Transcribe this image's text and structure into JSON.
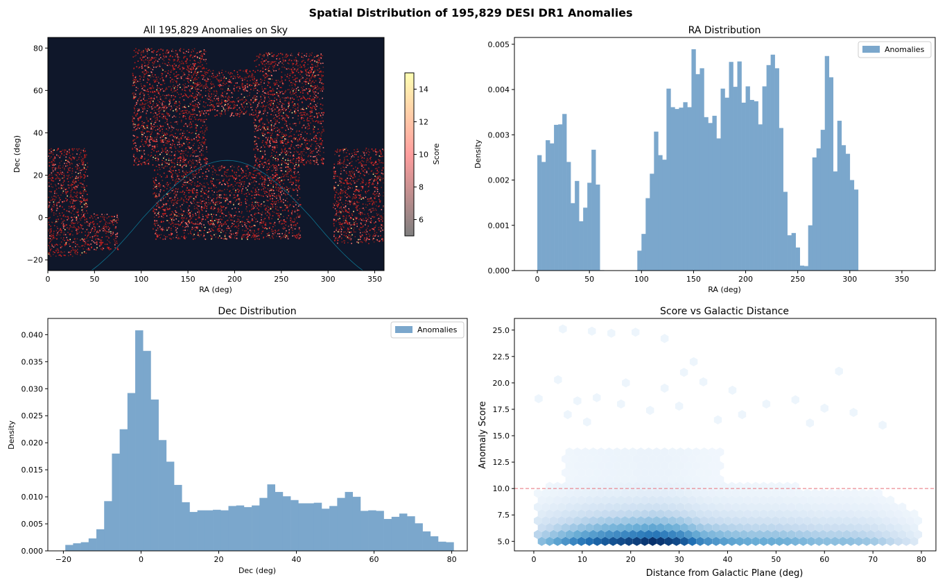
{
  "suptitle": "Spatial Distribution of 195,829 DESI DR1 Anomalies",
  "chart_data": [
    {
      "type": "scatter",
      "title": "All 195,829 Anomalies on Sky",
      "xlabel": "RA (deg)",
      "ylabel": "Dec (deg)",
      "xlim": [
        0,
        360
      ],
      "ylim": [
        -25,
        85
      ],
      "xticks": [
        "0",
        "50",
        "100",
        "150",
        "200",
        "250",
        "300",
        "350"
      ],
      "yticks": [
        "−20",
        "0",
        "20",
        "40",
        "60",
        "80"
      ],
      "background": "#0f172a",
      "point_color": "#b91c1c",
      "galactic_plane_color": "#0e7490",
      "colorbar": {
        "label": "Score",
        "range": [
          5,
          15
        ],
        "ticks": [
          "6",
          "8",
          "10",
          "12",
          "14"
        ],
        "colors": [
          "#7f7f7f",
          "#ff9e9e",
          "#ffffb3"
        ]
      },
      "footprint_regions": [
        {
          "ra_min": 0,
          "ra_max": 42,
          "dec_min": -18,
          "dec_max": 33
        },
        {
          "ra_min": 42,
          "ra_max": 75,
          "dec_min": -15,
          "dec_max": 2
        },
        {
          "ra_min": 305,
          "ra_max": 360,
          "dec_min": -12,
          "dec_max": 33
        },
        {
          "ra_min": 112,
          "ra_max": 270,
          "dec_min": -10,
          "dec_max": 25
        },
        {
          "ra_min": 90,
          "ra_max": 170,
          "dec_min": 25,
          "dec_max": 80
        },
        {
          "ra_min": 170,
          "ra_max": 220,
          "dec_min": 48,
          "dec_max": 70
        },
        {
          "ra_min": 220,
          "ra_max": 295,
          "dec_min": 25,
          "dec_max": 78
        }
      ]
    },
    {
      "type": "bar",
      "title": "RA Distribution",
      "xlabel": "RA (deg)",
      "ylabel": "Density",
      "xlim": [
        -22,
        382
      ],
      "ylim": [
        0,
        0.00515
      ],
      "xticks": [
        "0",
        "50",
        "100",
        "150",
        "200",
        "250",
        "300",
        "350"
      ],
      "yticks": [
        "0.000",
        "0.001",
        "0.002",
        "0.003",
        "0.004",
        "0.005"
      ],
      "bin_start": 0,
      "bin_width": 4,
      "legend": [
        "Anomalies"
      ],
      "legend_position": "top-right",
      "color": "#7ba7cc",
      "values": [
        0.00255,
        0.0024,
        0.00288,
        0.00281,
        0.00322,
        0.00323,
        0.00346,
        0.0024,
        0.00149,
        0.00198,
        0.00109,
        0.00139,
        0.00194,
        0.00267,
        0.0019,
        1e-05,
        0,
        0,
        0,
        0,
        0,
        0,
        0,
        0,
        0.00044,
        0.00081,
        0.0016,
        0.00214,
        0.00307,
        0.00255,
        0.00245,
        0.00402,
        0.00361,
        0.00357,
        0.0036,
        0.00372,
        0.00361,
        0.00489,
        0.00434,
        0.00447,
        0.00339,
        0.00326,
        0.00342,
        0.00292,
        0.00402,
        0.00382,
        0.00461,
        0.00406,
        0.00462,
        0.00371,
        0.00407,
        0.00377,
        0.00374,
        0.00323,
        0.00407,
        0.00454,
        0.00477,
        0.00447,
        0.00315,
        0.00174,
        0.00078,
        0.00083,
        0.00051,
        0.00011,
        0.0001,
        0.001,
        0.0025,
        0.0027,
        0.00311,
        0.00474,
        0.00427,
        0.00219,
        0.00331,
        0.00277,
        0.00258,
        0.002,
        0.00179
      ]
    },
    {
      "type": "bar",
      "title": "Dec Distribution",
      "xlabel": "Dec (deg)",
      "ylabel": "Density",
      "xlim": [
        -24,
        84
      ],
      "ylim": [
        0,
        0.043
      ],
      "xticks": [
        "−20",
        "0",
        "20",
        "40",
        "60",
        "80"
      ],
      "yticks": [
        "0.000",
        "0.005",
        "0.010",
        "0.015",
        "0.020",
        "0.025",
        "0.030",
        "0.035",
        "0.040"
      ],
      "bin_start": -19.5,
      "bin_width": 2,
      "legend": [
        "Anomalies"
      ],
      "legend_position": "top-right",
      "color": "#7ba7cc",
      "values": [
        0.0011,
        0.0014,
        0.0016,
        0.0023,
        0.004,
        0.0092,
        0.018,
        0.0225,
        0.0292,
        0.0408,
        0.037,
        0.028,
        0.0205,
        0.0165,
        0.0122,
        0.009,
        0.0072,
        0.0075,
        0.0075,
        0.0076,
        0.0075,
        0.0083,
        0.0084,
        0.0081,
        0.0084,
        0.0098,
        0.0123,
        0.0109,
        0.0101,
        0.0094,
        0.0088,
        0.0088,
        0.0089,
        0.0078,
        0.0083,
        0.0098,
        0.0109,
        0.01,
        0.0074,
        0.0075,
        0.0074,
        0.0059,
        0.0063,
        0.0069,
        0.0064,
        0.0051,
        0.0036,
        0.0027,
        0.0017,
        0.0016
      ]
    },
    {
      "type": "heatmap",
      "title": "Score vs Galactic Distance",
      "xlabel": "Distance from Galactic Plane (deg)",
      "ylabel": "Anomaly Score",
      "xlim": [
        -4,
        83
      ],
      "ylim": [
        4.1,
        26.1
      ],
      "xticks": [
        "0",
        "10",
        "20",
        "30",
        "40",
        "50",
        "60",
        "70",
        "80"
      ],
      "yticks": [
        "5.0",
        "7.5",
        "10.0",
        "12.5",
        "15.0",
        "17.5",
        "20.0",
        "22.5",
        "25.0"
      ],
      "threshold": 10,
      "threshold_color": "#e8707a",
      "colormap": "Blues",
      "density_profile": {
        "dist": [
          0,
          5,
          10,
          15,
          20,
          25,
          30,
          35,
          40,
          45,
          50,
          55,
          60,
          65,
          70,
          75,
          80
        ],
        "weight": [
          0.25,
          0.45,
          0.65,
          0.8,
          0.9,
          1.0,
          0.85,
          0.55,
          0.45,
          0.4,
          0.4,
          0.35,
          0.3,
          0.3,
          0.25,
          0.15,
          0.05
        ]
      },
      "outliers": [
        [
          6,
          25.1
        ],
        [
          12,
          24.9
        ],
        [
          16,
          24.7
        ],
        [
          21,
          24.8
        ],
        [
          27,
          24.2
        ],
        [
          1,
          18.5
        ],
        [
          5,
          20.3
        ],
        [
          19,
          20.0
        ],
        [
          31,
          21.0
        ],
        [
          27,
          19.5
        ],
        [
          35,
          20.1
        ],
        [
          41,
          19.3
        ],
        [
          33,
          22.0
        ],
        [
          63,
          21.1
        ],
        [
          9,
          18.3
        ],
        [
          13,
          18.6
        ],
        [
          18,
          18.0
        ],
        [
          30,
          17.8
        ],
        [
          48,
          18.0
        ],
        [
          54,
          18.4
        ],
        [
          7,
          17.0
        ],
        [
          24,
          17.4
        ],
        [
          43,
          17.0
        ],
        [
          60,
          17.6
        ],
        [
          66,
          17.2
        ],
        [
          11,
          16.3
        ],
        [
          38,
          16.5
        ],
        [
          57,
          16.2
        ],
        [
          72,
          16.0
        ]
      ]
    }
  ]
}
